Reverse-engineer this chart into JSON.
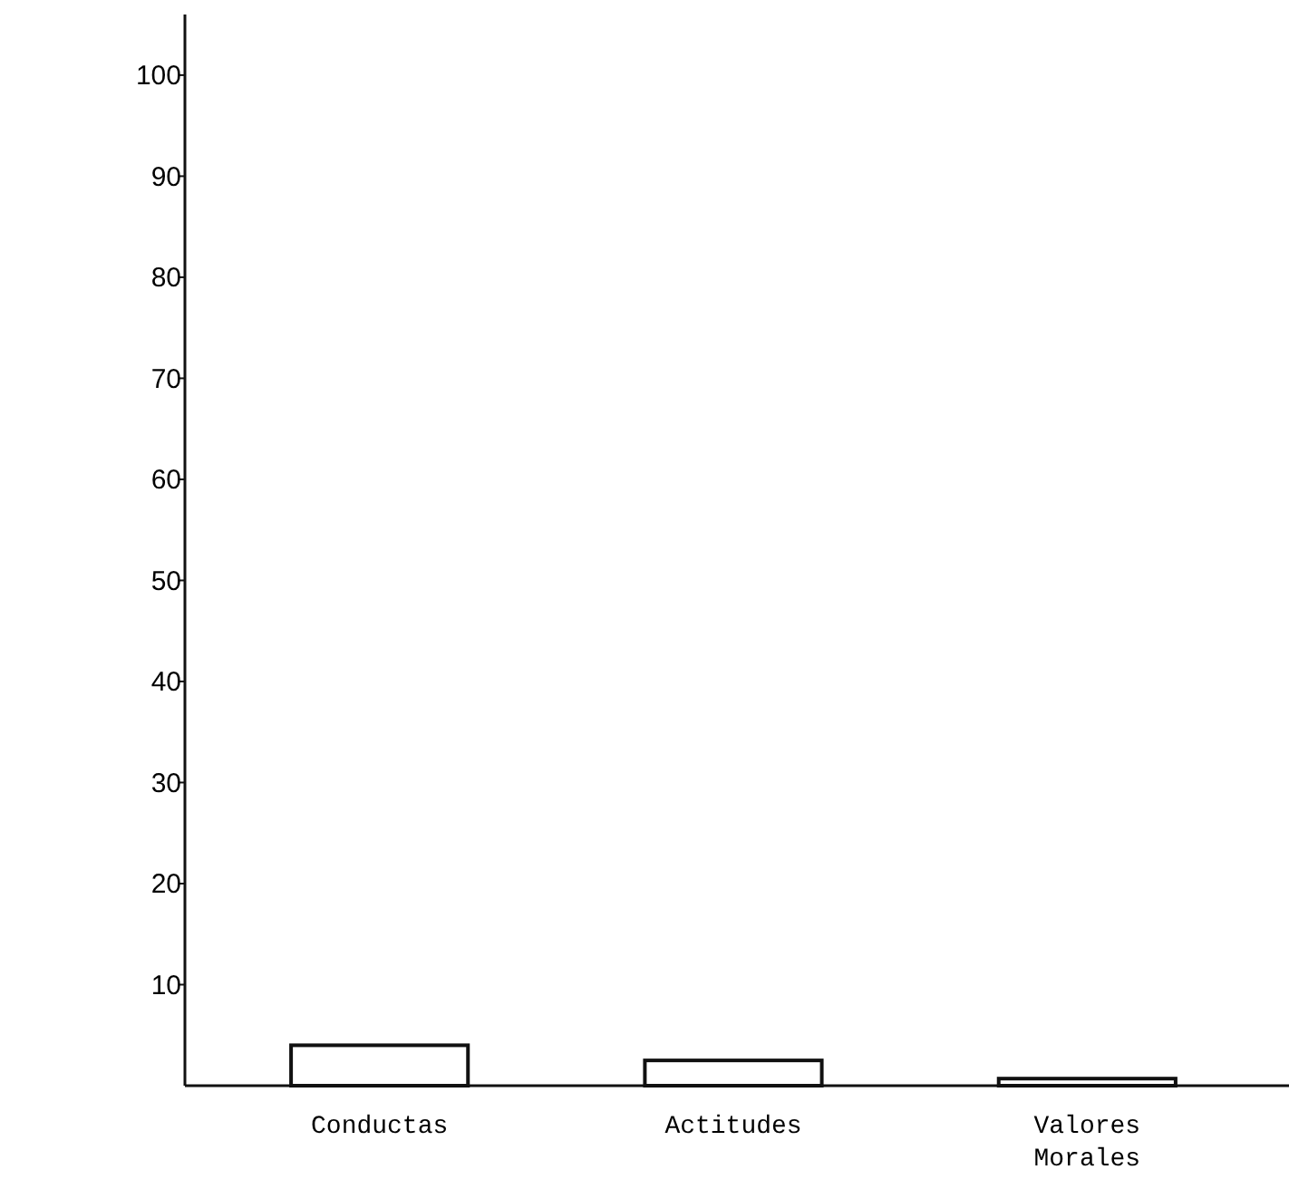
{
  "chart_data": {
    "type": "bar",
    "categories": [
      "Conductas",
      "Actitudes",
      "Valores Morales"
    ],
    "values": [
      4,
      2.5,
      0.7
    ],
    "color": "#ffffff",
    "ylim": [
      0,
      106
    ],
    "yticks": [
      10,
      20,
      30,
      40,
      50,
      60,
      70,
      80,
      90,
      100
    ],
    "grid": false
  }
}
